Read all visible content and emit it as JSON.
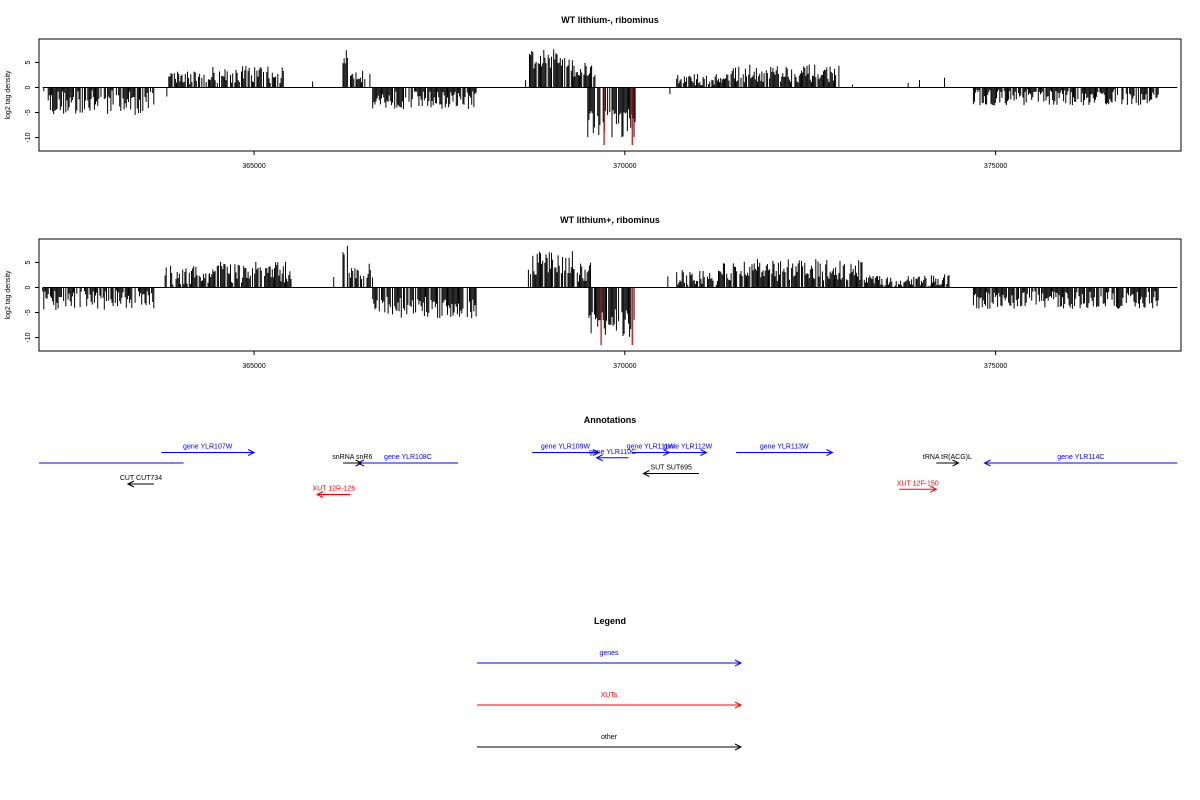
{
  "colors": {
    "gene": "#0000ff",
    "xut": "#ff0000",
    "other": "#000000",
    "highlight": "#cc0000"
  },
  "chart_data": [
    {
      "type": "bar",
      "title": "WT lithium-, ribominus",
      "ylabel": "log2 tag density",
      "xlim": [
        362100,
        377500
      ],
      "ylim": [
        -12.5,
        10
      ],
      "x_ticks": [
        365000,
        370000,
        375000
      ],
      "y_ticks": [
        5,
        0,
        -5,
        -10
      ],
      "grid": false,
      "segments": [
        {
          "from": 362150,
          "to": 363650,
          "mean": -3,
          "amp": 2.5
        },
        {
          "from": 363850,
          "to": 364400,
          "mean": 2,
          "amp": 1.5
        },
        {
          "from": 364400,
          "to": 365400,
          "mean": 2.5,
          "amp": 1.8
        },
        {
          "from": 366200,
          "to": 366280,
          "mean": 6,
          "amp": 1.5
        },
        {
          "from": 366300,
          "to": 366500,
          "mean": 2.5,
          "amp": 1.5
        },
        {
          "from": 366600,
          "to": 368000,
          "mean": -2.5,
          "amp": 1.8
        },
        {
          "from": 368700,
          "to": 369300,
          "mean": 5.5,
          "amp": 2.2
        },
        {
          "from": 369300,
          "to": 369600,
          "mean": 3.5,
          "amp": 1.5
        },
        {
          "from": 369500,
          "to": 370150,
          "mean": -7,
          "amp": 3
        },
        {
          "from": 370700,
          "to": 371300,
          "mean": 1.5,
          "amp": 1.2
        },
        {
          "from": 371300,
          "to": 372900,
          "mean": 2.8,
          "amp": 1.8
        },
        {
          "from": 374700,
          "to": 377200,
          "mean": -2,
          "amp": 1.6
        }
      ],
      "highlights": [
        {
          "x": 369720,
          "y": -11.5
        },
        {
          "x": 370100,
          "y": -11.5
        }
      ]
    },
    {
      "type": "bar",
      "title": "WT lithium+, ribominus",
      "ylabel": "log2 tag density",
      "xlim": [
        362100,
        377500
      ],
      "ylim": [
        -12.5,
        10
      ],
      "x_ticks": [
        365000,
        370000,
        375000
      ],
      "y_ticks": [
        5,
        0,
        -5,
        -10
      ],
      "grid": false,
      "segments": [
        {
          "from": 362150,
          "to": 363650,
          "mean": -2.5,
          "amp": 2
        },
        {
          "from": 363800,
          "to": 364400,
          "mean": 2.5,
          "amp": 2
        },
        {
          "from": 364400,
          "to": 365500,
          "mean": 3,
          "amp": 2.2
        },
        {
          "from": 366200,
          "to": 366280,
          "mean": 7,
          "amp": 2
        },
        {
          "from": 366300,
          "to": 366600,
          "mean": 3,
          "amp": 2
        },
        {
          "from": 366600,
          "to": 368000,
          "mean": -4,
          "amp": 2.2
        },
        {
          "from": 368700,
          "to": 369300,
          "mean": 5,
          "amp": 2.5
        },
        {
          "from": 369300,
          "to": 369550,
          "mean": 3,
          "amp": 2
        },
        {
          "from": 369500,
          "to": 370150,
          "mean": -7,
          "amp": 3
        },
        {
          "from": 370700,
          "to": 371300,
          "mean": 2,
          "amp": 1.5
        },
        {
          "from": 371300,
          "to": 373200,
          "mean": 3.5,
          "amp": 2.2
        },
        {
          "from": 373200,
          "to": 374400,
          "mean": 1.5,
          "amp": 1.2
        },
        {
          "from": 374700,
          "to": 377200,
          "mean": -2.5,
          "amp": 1.8
        }
      ],
      "highlights": [
        {
          "x": 369680,
          "y": -11.5
        },
        {
          "x": 370100,
          "y": -11.5
        }
      ]
    }
  ],
  "annotations": {
    "title": "Annotations",
    "items": [
      {
        "label": "",
        "from": 362100,
        "to": 364050,
        "dir": 1,
        "kind": "gene",
        "row": 2,
        "arrow": false
      },
      {
        "label": "gene YLR107W",
        "from": 363750,
        "to": 365000,
        "dir": 1,
        "kind": "gene",
        "row": 1,
        "arrow": true
      },
      {
        "label": "gene YLR108C",
        "from": 366400,
        "to": 367750,
        "dir": -1,
        "kind": "gene",
        "row": 2,
        "arrow": true
      },
      {
        "label": "snRNA snR6",
        "from": 366200,
        "to": 366450,
        "dir": 1,
        "kind": "other",
        "row": 2,
        "arrow": true
      },
      {
        "label": "gene YLR109W",
        "from": 368750,
        "to": 369650,
        "dir": 1,
        "kind": "gene",
        "row": 1,
        "arrow": true
      },
      {
        "label": "gene YLR110C",
        "from": 369620,
        "to": 370050,
        "dir": -1,
        "kind": "gene",
        "row": 1.5,
        "arrow": true
      },
      {
        "label": "gene YLR111W",
        "from": 370100,
        "to": 370600,
        "dir": 1,
        "kind": "gene",
        "row": 1,
        "arrow": true
      },
      {
        "label": "gene YLR112W",
        "from": 370600,
        "to": 371100,
        "dir": 1,
        "kind": "gene",
        "row": 1,
        "arrow": true
      },
      {
        "label": "gene YLR113W",
        "from": 371500,
        "to": 372800,
        "dir": 1,
        "kind": "gene",
        "row": 1,
        "arrow": true
      },
      {
        "label": "tRNA tR(ACG)L",
        "from": 374200,
        "to": 374500,
        "dir": 1,
        "kind": "other",
        "row": 2,
        "arrow": true
      },
      {
        "label": "gene YLR114C",
        "from": 374850,
        "to": 377450,
        "dir": -1,
        "kind": "gene",
        "row": 2,
        "arrow": true
      },
      {
        "label": "SUT SUT695",
        "from": 370250,
        "to": 371000,
        "dir": -1,
        "kind": "other",
        "row": 3,
        "arrow": true
      },
      {
        "label": "CUT CUT734",
        "from": 363300,
        "to": 363650,
        "dir": -1,
        "kind": "other",
        "row": 4,
        "arrow": true
      },
      {
        "label": "XUT 12R-126",
        "from": 365850,
        "to": 366300,
        "dir": -1,
        "kind": "xut",
        "row": 5,
        "arrow": true
      },
      {
        "label": "XUT 12F-150",
        "from": 373700,
        "to": 374200,
        "dir": 1,
        "kind": "xut",
        "row": 4.5,
        "arrow": true
      }
    ]
  },
  "legend": {
    "title": "Legend",
    "entries": [
      {
        "label": "genes",
        "kind": "gene"
      },
      {
        "label": "XUTs",
        "kind": "xut"
      },
      {
        "label": "other",
        "kind": "other"
      }
    ]
  }
}
